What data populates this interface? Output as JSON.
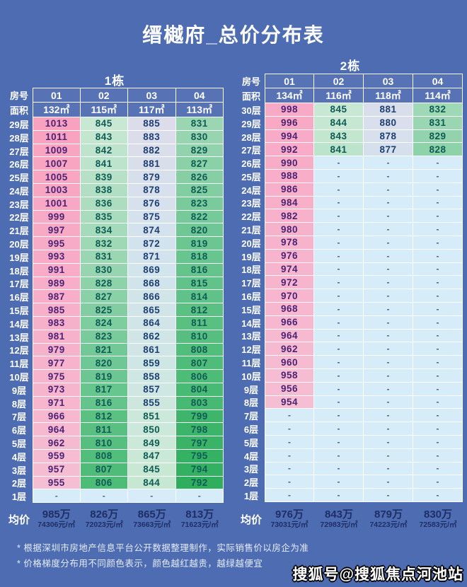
{
  "labels": {
    "room_no": "房号",
    "area": "面积",
    "average": "均价"
  },
  "footnotes": [
    "* 根据深圳市房地产信息平台公开数据整理制作，实际销售价以房企为准",
    "* 价格梯度分布用不同颜色表示，颜色越红越贵，越绿越便宜"
  ],
  "watermark": "搜狐号@搜狐焦点河池站",
  "colors": {
    "background": "#4e6cb2",
    "grid_border": "#ffffff",
    "header_text": "#ffffff",
    "empty_cell_bg": "#d6ecf8",
    "empty_cell_text": "#44628c",
    "text_high_price": "#4b2275",
    "text_mid_price": "#1e3f72",
    "text_low_price": "#0f5c55",
    "avg_text": "#1f2f66",
    "price_scale": [
      [
        792,
        "#2fae5e"
      ],
      [
        806,
        "#4dbc77"
      ],
      [
        820,
        "#6ec794"
      ],
      [
        833,
        "#a2d9b8"
      ],
      [
        845,
        "#c9e8d4"
      ],
      [
        859,
        "#cfe7e4"
      ],
      [
        872,
        "#d3e3ee"
      ],
      [
        885,
        "#dcdcea"
      ],
      [
        954,
        "#f6bed3"
      ],
      [
        1013,
        "#f9a2c0"
      ]
    ]
  },
  "chart_data": {
    "type": "table",
    "title": "缙樾府_总价分布表",
    "tables": [
      {
        "name": "1栋",
        "units": [
          "01",
          "02",
          "03",
          "04"
        ],
        "areas": [
          "132㎡",
          "115㎡",
          "117㎡",
          "113㎡"
        ],
        "floors": [
          "29层",
          "28层",
          "27层",
          "26层",
          "25层",
          "24层",
          "23层",
          "22层",
          "21层",
          "20层",
          "19层",
          "18层",
          "17层",
          "16层",
          "15层",
          "14层",
          "13层",
          "12层",
          "11层",
          "10层",
          "9层",
          "8层",
          "7层",
          "6层",
          "5层",
          "4层",
          "3层",
          "2层",
          "1层"
        ],
        "rows": [
          [
            1013,
            845,
            885,
            831
          ],
          [
            1011,
            843,
            883,
            830
          ],
          [
            1009,
            842,
            882,
            829
          ],
          [
            1007,
            841,
            881,
            827
          ],
          [
            1005,
            839,
            879,
            826
          ],
          [
            1003,
            838,
            878,
            825
          ],
          [
            1001,
            836,
            876,
            823
          ],
          [
            999,
            835,
            875,
            822
          ],
          [
            997,
            834,
            874,
            820
          ],
          [
            995,
            832,
            872,
            819
          ],
          [
            993,
            831,
            871,
            818
          ],
          [
            991,
            830,
            869,
            816
          ],
          [
            989,
            828,
            868,
            815
          ],
          [
            987,
            827,
            866,
            814
          ],
          [
            985,
            825,
            865,
            812
          ],
          [
            983,
            824,
            864,
            811
          ],
          [
            981,
            823,
            862,
            810
          ],
          [
            979,
            821,
            861,
            808
          ],
          [
            977,
            820,
            859,
            807
          ],
          [
            975,
            819,
            858,
            806
          ],
          [
            973,
            817,
            857,
            804
          ],
          [
            971,
            816,
            855,
            803
          ],
          [
            966,
            812,
            851,
            799
          ],
          [
            964,
            811,
            850,
            798
          ],
          [
            962,
            810,
            849,
            797
          ],
          [
            959,
            808,
            847,
            795
          ],
          [
            957,
            807,
            845,
            794
          ],
          [
            955,
            806,
            844,
            792
          ],
          [
            "-",
            "-",
            "-",
            "-"
          ]
        ],
        "averages": [
          {
            "total": "985万",
            "per_sqm": "74306元/㎡"
          },
          {
            "total": "826万",
            "per_sqm": "72023元/㎡"
          },
          {
            "total": "865万",
            "per_sqm": "73663元/㎡"
          },
          {
            "total": "813万",
            "per_sqm": "71623元/㎡"
          }
        ]
      },
      {
        "name": "2栋",
        "units": [
          "01",
          "02",
          "03",
          "04"
        ],
        "areas": [
          "134㎡",
          "116㎡",
          "118㎡",
          "114㎡"
        ],
        "floors": [
          "30层",
          "29层",
          "28层",
          "27层",
          "26层",
          "25层",
          "24层",
          "23层",
          "22层",
          "21层",
          "20层",
          "19层",
          "18层",
          "17层",
          "16层",
          "15层",
          "14层",
          "13层",
          "12层",
          "11层",
          "10层",
          "9层",
          "8层",
          "7层",
          "6层",
          "5层",
          "4层",
          "3层",
          "2层",
          "1层"
        ],
        "rows": [
          [
            998,
            845,
            881,
            832
          ],
          [
            996,
            844,
            880,
            831
          ],
          [
            994,
            843,
            878,
            829
          ],
          [
            992,
            841,
            877,
            828
          ],
          [
            990,
            "-",
            "-",
            "-"
          ],
          [
            988,
            "-",
            "-",
            "-"
          ],
          [
            986,
            "-",
            "-",
            "-"
          ],
          [
            984,
            "-",
            "-",
            "-"
          ],
          [
            982,
            "-",
            "-",
            "-"
          ],
          [
            980,
            "-",
            "-",
            "-"
          ],
          [
            978,
            "-",
            "-",
            "-"
          ],
          [
            976,
            "-",
            "-",
            "-"
          ],
          [
            974,
            "-",
            "-",
            "-"
          ],
          [
            972,
            "-",
            "-",
            "-"
          ],
          [
            970,
            "-",
            "-",
            "-"
          ],
          [
            968,
            "-",
            "-",
            "-"
          ],
          [
            966,
            "-",
            "-",
            "-"
          ],
          [
            964,
            "-",
            "-",
            "-"
          ],
          [
            962,
            "-",
            "-",
            "-"
          ],
          [
            960,
            "-",
            "-",
            "-"
          ],
          [
            958,
            "-",
            "-",
            "-"
          ],
          [
            956,
            "-",
            "-",
            "-"
          ],
          [
            954,
            "-",
            "-",
            "-"
          ],
          [
            "-",
            "-",
            "-",
            "-"
          ],
          [
            "-",
            "-",
            "-",
            "-"
          ],
          [
            "-",
            "-",
            "-",
            "-"
          ],
          [
            "-",
            "-",
            "-",
            "-"
          ],
          [
            "-",
            "-",
            "-",
            "-"
          ],
          [
            "-",
            "-",
            "-",
            "-"
          ],
          [
            "-",
            "-",
            "-",
            "-"
          ]
        ],
        "averages": [
          {
            "total": "976万",
            "per_sqm": "73031元/㎡"
          },
          {
            "total": "843万",
            "per_sqm": "72983元/㎡"
          },
          {
            "total": "879万",
            "per_sqm": "74223元/㎡"
          },
          {
            "total": "830万",
            "per_sqm": "72583元/㎡"
          }
        ]
      }
    ]
  }
}
